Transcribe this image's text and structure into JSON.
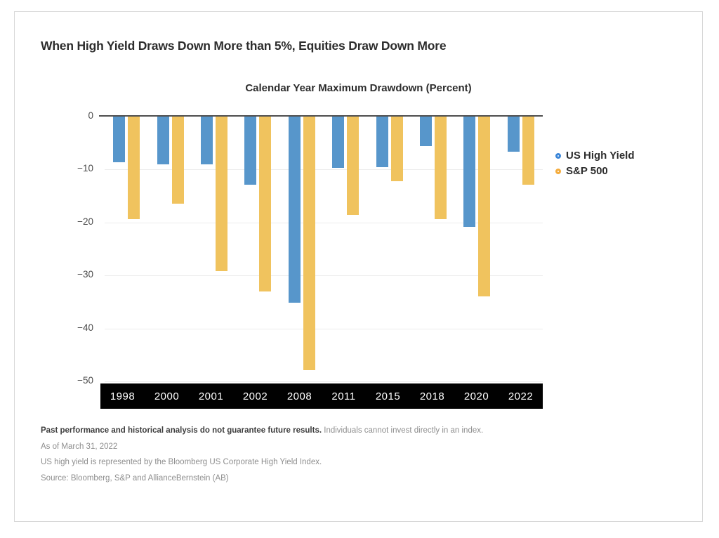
{
  "page": {
    "title": "When High Yield Draws Down More than 5%, Equities Draw Down More"
  },
  "chart_data": {
    "type": "bar",
    "title": "Calendar Year Maximum Drawdown (Percent)",
    "categories": [
      "1998",
      "2000",
      "2001",
      "2002",
      "2008",
      "2011",
      "2015",
      "2018",
      "2020",
      "2022"
    ],
    "series": [
      {
        "name": "US High Yield",
        "color": "#5796CB",
        "values": [
          -8.6,
          -9.0,
          -9.0,
          -12.9,
          -35.1,
          -9.7,
          -9.6,
          -5.6,
          -20.8,
          -6.6
        ]
      },
      {
        "name": "S&P 500",
        "color": "#F0C35E",
        "values": [
          -19.3,
          -16.5,
          -29.2,
          -33.0,
          -47.9,
          -18.6,
          -12.2,
          -19.4,
          -33.9,
          -12.8
        ]
      }
    ],
    "ylim": [
      -50,
      0
    ],
    "yticks": [
      0,
      -10,
      -20,
      -30,
      -40,
      -50
    ],
    "grid": true,
    "legend_position": "right",
    "x_axis_band_color": "#010101",
    "x_axis_text_color": "#ffffff"
  },
  "legend": {
    "items": [
      {
        "label": "US High Yield",
        "ring_color": "#3C86D8"
      },
      {
        "label": "S&P 500",
        "ring_color": "#F4AC3D"
      }
    ]
  },
  "footnotes": {
    "line1_bold": "Past performance and historical analysis do not guarantee future results.",
    "line1_regular": " Individuals cannot invest directly in an index.",
    "line2": "As of March 31, 2022",
    "line3": "US high yield is represented by the Bloomberg US Corporate High Yield Index.",
    "line4": "Source: Bloomberg, S&P and AllianceBernstein (AB)"
  }
}
